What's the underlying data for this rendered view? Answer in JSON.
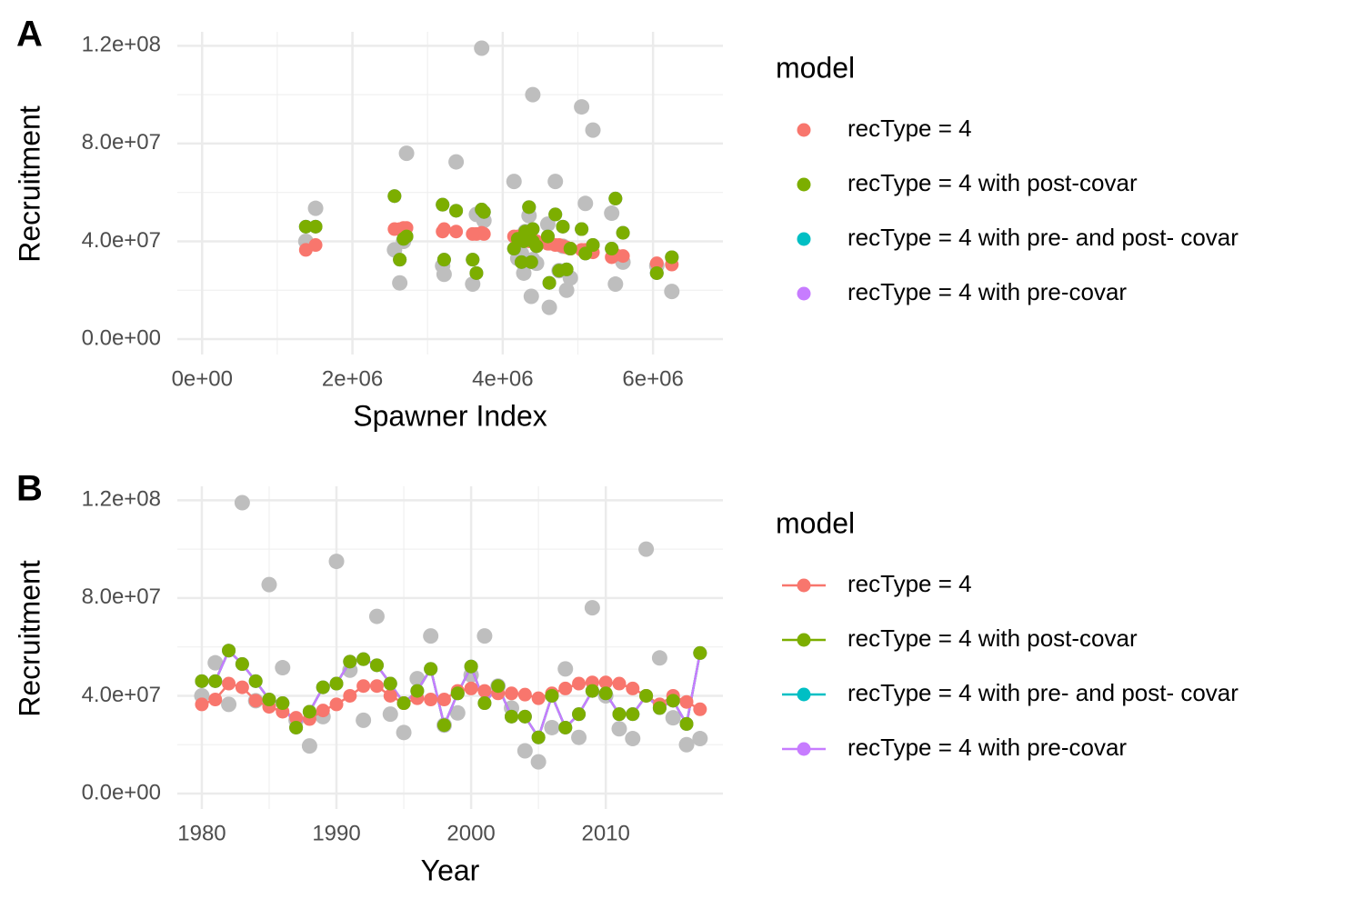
{
  "chart_data": [
    {
      "type": "scatter",
      "panel_label": "A",
      "xlabel": "Spawner Index",
      "ylabel": "Recruitment",
      "legend_title": "model",
      "grid": true,
      "minor_grid": true,
      "xlim": [
        -330000,
        6930000
      ],
      "ylim": [
        -6300000,
        125700000
      ],
      "xticks": [
        {
          "value": 0,
          "label": "0e+00"
        },
        {
          "value": 2000000,
          "label": "2e+06"
        },
        {
          "value": 4000000,
          "label": "4e+06"
        },
        {
          "value": 6000000,
          "label": "6e+06"
        }
      ],
      "yticks": [
        {
          "value": 0,
          "label": "0.0e+00"
        },
        {
          "value": 40000000,
          "label": "4.0e+07"
        },
        {
          "value": 80000000,
          "label": "8.0e+07"
        },
        {
          "value": 120000000,
          "label": "1.2e+08"
        }
      ],
      "x": [
        1380000,
        1510000,
        2560000,
        3720000,
        4800000,
        5200000,
        5450000,
        6050000,
        6250000,
        5600000,
        5050000,
        4350000,
        3200000,
        3380000,
        4400000,
        4900000,
        4600000,
        4700000,
        4750000,
        4200000,
        3750000,
        4150000,
        4300000,
        4250000,
        4380000,
        4620000,
        4280000,
        3650000,
        2630000,
        2720000,
        2680000,
        3220000,
        3600000,
        4400000,
        5100000,
        4450000,
        4850000,
        5500000
      ],
      "observed": {
        "color": "#bebebe",
        "values": [
          40000000,
          53500000,
          36500000,
          119000000,
          38000000,
          85500000,
          51500000,
          30000000,
          19500000,
          31500000,
          95000000,
          50500000,
          30000000,
          72500000,
          32500000,
          25000000,
          47000000,
          64500000,
          28000000,
          33000000,
          48500000,
          64500000,
          44000000,
          35000000,
          17500000,
          13000000,
          27000000,
          51000000,
          23000000,
          76000000,
          40000000,
          26500000,
          22500000,
          100000000,
          55500000,
          31000000,
          20000000,
          22500000
        ]
      },
      "series": [
        {
          "name": "recType = 4",
          "color": "#F8766D",
          "values": [
            36500000,
            38500000,
            45000000,
            43500000,
            38000000,
            35500000,
            33500000,
            31000000,
            30500000,
            34000000,
            36500000,
            40000000,
            44000000,
            44000000,
            40000000,
            37000000,
            39000000,
            38500000,
            38500000,
            42000000,
            43000000,
            42000000,
            41000000,
            41000000,
            40500000,
            39000000,
            41000000,
            43000000,
            45000000,
            45500000,
            45500000,
            45000000,
            43000000,
            40000000,
            36500000,
            40000000,
            37500000,
            34500000
          ]
        },
        {
          "name": "recType = 4 with post-covar",
          "color": "#7CAE00",
          "values": [
            46000000,
            46000000,
            58500000,
            53000000,
            46000000,
            38500000,
            37000000,
            27000000,
            33500000,
            43500000,
            45000000,
            54000000,
            55000000,
            52500000,
            45000000,
            37000000,
            42000000,
            51000000,
            28000000,
            41000000,
            52000000,
            37000000,
            44000000,
            31500000,
            31500000,
            23000000,
            40000000,
            27000000,
            32500000,
            42000000,
            41000000,
            32500000,
            32500000,
            40000000,
            35000000,
            38000000,
            28500000,
            57500000
          ]
        },
        {
          "name": "recType = 4 with pre- and post- covar",
          "color": "#00BFC4",
          "values": [
            46000000,
            46000000,
            58500000,
            53000000,
            46000000,
            38500000,
            37000000,
            27000000,
            33500000,
            43500000,
            45000000,
            54000000,
            55000000,
            52500000,
            45000000,
            37000000,
            42000000,
            51000000,
            28000000,
            41000000,
            52000000,
            37000000,
            44000000,
            31500000,
            31500000,
            23000000,
            40000000,
            27000000,
            32500000,
            42000000,
            41000000,
            32500000,
            32500000,
            40000000,
            35000000,
            38000000,
            28500000,
            57500000
          ]
        },
        {
          "name": "recType = 4 with pre-covar",
          "color": "#C77CFF",
          "values": [
            46000000,
            46000000,
            58500000,
            53000000,
            46000000,
            38500000,
            37000000,
            27000000,
            33500000,
            43500000,
            45000000,
            54000000,
            55000000,
            52500000,
            45000000,
            37000000,
            42000000,
            51000000,
            28000000,
            41000000,
            52000000,
            37000000,
            44000000,
            31500000,
            31500000,
            23000000,
            40000000,
            27000000,
            32500000,
            42000000,
            41000000,
            32500000,
            32500000,
            40000000,
            35000000,
            38000000,
            28500000,
            57500000
          ]
        }
      ]
    },
    {
      "type": "line",
      "panel_label": "B",
      "xlabel": "Year",
      "ylabel": "Recruitment",
      "legend_title": "model",
      "grid": true,
      "minor_grid": true,
      "xlim": [
        1978.18,
        2018.7
      ],
      "ylim": [
        -6300000,
        125700000
      ],
      "xticks": [
        1980,
        1990,
        2000,
        2010
      ],
      "yticks": [
        {
          "value": 0,
          "label": "0.0e+00"
        },
        {
          "value": 40000000,
          "label": "4.0e+07"
        },
        {
          "value": 80000000,
          "label": "8.0e+07"
        },
        {
          "value": 120000000,
          "label": "1.2e+08"
        }
      ],
      "x": [
        1980,
        1981,
        1982,
        1983,
        1984,
        1985,
        1986,
        1987,
        1988,
        1989,
        1990,
        1991,
        1992,
        1993,
        1994,
        1995,
        1996,
        1997,
        1998,
        1999,
        2000,
        2001,
        2002,
        2003,
        2004,
        2005,
        2006,
        2007,
        2008,
        2009,
        2010,
        2011,
        2012,
        2013,
        2014,
        2015,
        2016,
        2017
      ],
      "observed": {
        "color": "#bebebe",
        "values": [
          40000000,
          53500000,
          36500000,
          119000000,
          38000000,
          85500000,
          51500000,
          30000000,
          19500000,
          31500000,
          95000000,
          50500000,
          30000000,
          72500000,
          32500000,
          25000000,
          47000000,
          64500000,
          28000000,
          33000000,
          48500000,
          64500000,
          44000000,
          35000000,
          17500000,
          13000000,
          27000000,
          51000000,
          23000000,
          76000000,
          40000000,
          26500000,
          22500000,
          100000000,
          55500000,
          31000000,
          20000000,
          22500000
        ]
      },
      "series": [
        {
          "name": "recType = 4",
          "color": "#F8766D",
          "values": [
            36500000,
            38500000,
            45000000,
            43500000,
            38000000,
            35500000,
            33500000,
            31000000,
            30500000,
            34000000,
            36500000,
            40000000,
            44000000,
            44000000,
            40000000,
            37000000,
            39000000,
            38500000,
            38500000,
            42000000,
            43000000,
            42000000,
            41000000,
            41000000,
            40500000,
            39000000,
            41000000,
            43000000,
            45000000,
            45500000,
            45500000,
            45000000,
            43000000,
            40000000,
            36500000,
            40000000,
            37500000,
            34500000
          ]
        },
        {
          "name": "recType = 4 with post-covar",
          "color": "#7CAE00",
          "values": [
            46000000,
            46000000,
            58500000,
            53000000,
            46000000,
            38500000,
            37000000,
            27000000,
            33500000,
            43500000,
            45000000,
            54000000,
            55000000,
            52500000,
            45000000,
            37000000,
            42000000,
            51000000,
            28000000,
            41000000,
            52000000,
            37000000,
            44000000,
            31500000,
            31500000,
            23000000,
            40000000,
            27000000,
            32500000,
            42000000,
            41000000,
            32500000,
            32500000,
            40000000,
            35000000,
            38000000,
            28500000,
            57500000
          ]
        },
        {
          "name": "recType = 4 with pre- and post- covar",
          "color": "#00BFC4",
          "values": [
            46000000,
            46000000,
            58500000,
            53000000,
            46000000,
            38500000,
            37000000,
            27000000,
            33500000,
            43500000,
            45000000,
            54000000,
            55000000,
            52500000,
            45000000,
            37000000,
            42000000,
            51000000,
            28000000,
            41000000,
            52000000,
            37000000,
            44000000,
            31500000,
            31500000,
            23000000,
            40000000,
            27000000,
            32500000,
            42000000,
            41000000,
            32500000,
            32500000,
            40000000,
            35000000,
            38000000,
            28500000,
            57500000
          ]
        },
        {
          "name": "recType = 4 with pre-covar",
          "color": "#C77CFF",
          "values": [
            46000000,
            46000000,
            58500000,
            53000000,
            46000000,
            38500000,
            37000000,
            27000000,
            33500000,
            43500000,
            45000000,
            54000000,
            55000000,
            52500000,
            45000000,
            37000000,
            42000000,
            51000000,
            28000000,
            41000000,
            52000000,
            37000000,
            44000000,
            31500000,
            31500000,
            23000000,
            40000000,
            27000000,
            32500000,
            42000000,
            41000000,
            32500000,
            32500000,
            40000000,
            35000000,
            38000000,
            28500000,
            57500000
          ]
        }
      ]
    }
  ]
}
